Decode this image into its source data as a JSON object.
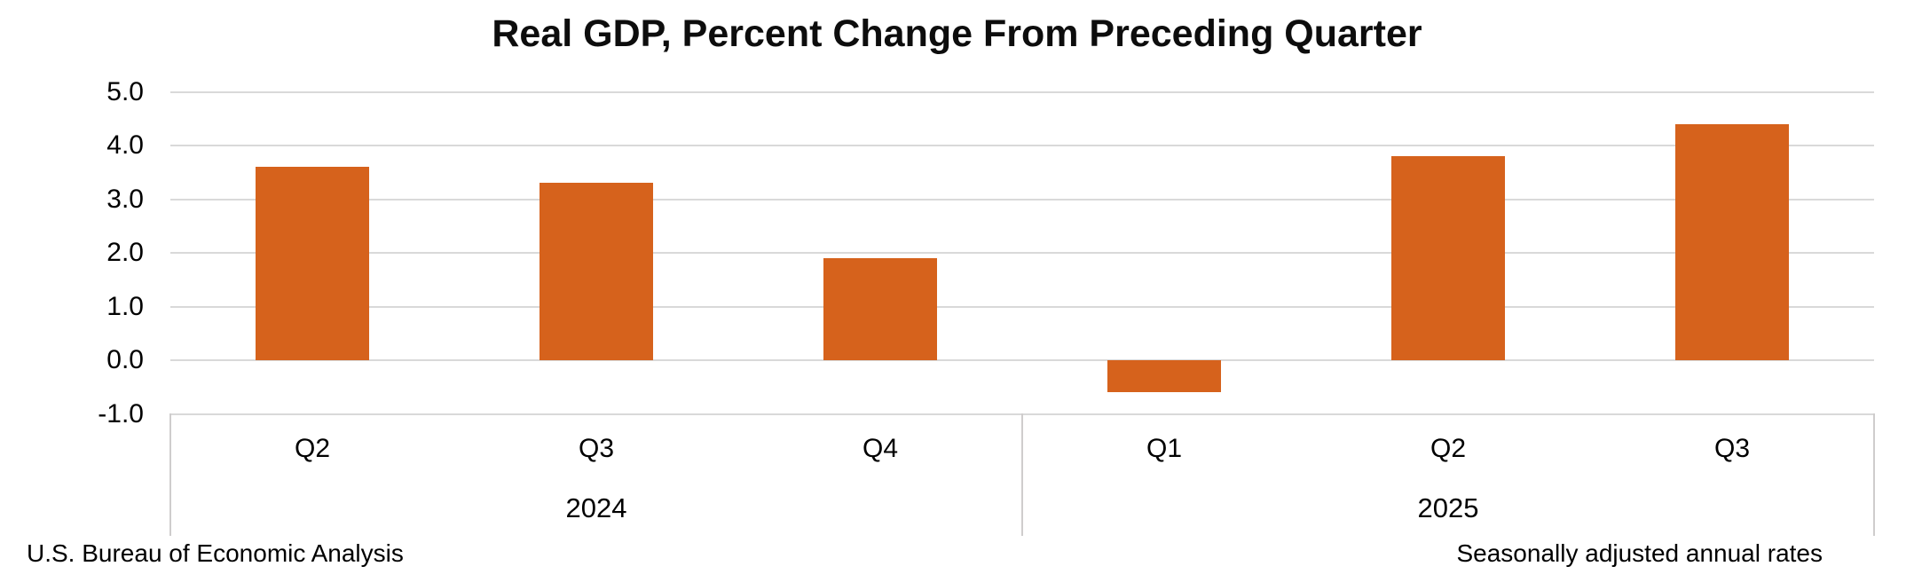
{
  "chart_data": {
    "type": "bar",
    "title": "Real GDP, Percent Change From Preceding Quarter",
    "categories": [
      "Q2",
      "Q3",
      "Q4",
      "Q1",
      "Q2",
      "Q3"
    ],
    "values": [
      3.6,
      3.3,
      1.9,
      -0.6,
      3.8,
      4.4
    ],
    "year_groups": [
      {
        "label": "2024",
        "start_index": 0,
        "count": 3
      },
      {
        "label": "2025",
        "start_index": 3,
        "count": 3
      }
    ],
    "xlabel": "",
    "ylabel": "",
    "ylim": [
      -1.0,
      5.0
    ],
    "ytick_step": 1.0,
    "yticks": [
      {
        "label": "5.0",
        "value": 5
      },
      {
        "label": "4.0",
        "value": 4
      },
      {
        "label": "3.0",
        "value": 3
      },
      {
        "label": "2.0",
        "value": 2
      },
      {
        "label": "1.0",
        "value": 1
      },
      {
        "label": "0.0",
        "value": 0
      },
      {
        "label": "-1.0",
        "value": -1
      }
    ],
    "grid": true,
    "legend": "none",
    "bar_color": "#d6621c",
    "gridline_color": "#d9d9d9",
    "axis_frame_color": "#cfcdcd",
    "annotations": {
      "bottom_left": "U.S. Bureau of Economic Analysis",
      "bottom_right": "Seasonally adjusted annual rates"
    }
  }
}
